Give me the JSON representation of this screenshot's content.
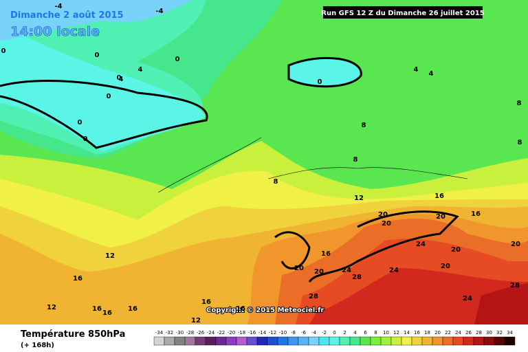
{
  "header": {
    "date": "Dimanche 2 août 2015",
    "time": "14:00 locale",
    "run": "Run GFS 12 Z du Dimanche 26 juillet 2015"
  },
  "copyright": "Copyright © 2015 Meteociel.fr",
  "footer": {
    "title": "Température 850hPa",
    "lead": "(+ 168h)"
  },
  "contour_labels": [
    -4,
    -4,
    0,
    0,
    0,
    4,
    0,
    0,
    4,
    0,
    0,
    0,
    4,
    4,
    8,
    8,
    8,
    8,
    8,
    12,
    16,
    16,
    20,
    20,
    20,
    12,
    16,
    16,
    12,
    16,
    16,
    16,
    16,
    20,
    20,
    16,
    24,
    28,
    24,
    20,
    20,
    24,
    28,
    20,
    24,
    28,
    12
  ],
  "legend": {
    "values": [
      -34,
      -32,
      -30,
      -28,
      -26,
      -24,
      -22,
      -20,
      -18,
      -16,
      -14,
      -12,
      -10,
      -8,
      -6,
      -4,
      -2,
      0,
      2,
      4,
      6,
      8,
      10,
      12,
      14,
      16,
      18,
      20,
      22,
      24,
      26,
      28,
      30,
      32,
      34
    ],
    "colors": [
      "#d2d2d2",
      "#aaaaaa",
      "#828282",
      "#a078a0",
      "#783c78",
      "#5a1e5a",
      "#6e2896",
      "#8c3cbe",
      "#b45ad2",
      "#6450d2",
      "#1e28b4",
      "#1e50d2",
      "#1e78e6",
      "#3c96f0",
      "#5ab4f5",
      "#78d2fa",
      "#50e6f0",
      "#5af5e6",
      "#50f0b4",
      "#46e68c",
      "#5ae650",
      "#78f03c",
      "#a0f03c",
      "#c8f03c",
      "#f0f046",
      "#f0d23c",
      "#f0b432",
      "#f0962d",
      "#eb6e28",
      "#e64b23",
      "#d2281e",
      "#b41414",
      "#8c0a0a",
      "#5a0505",
      "#1e0000"
    ]
  }
}
